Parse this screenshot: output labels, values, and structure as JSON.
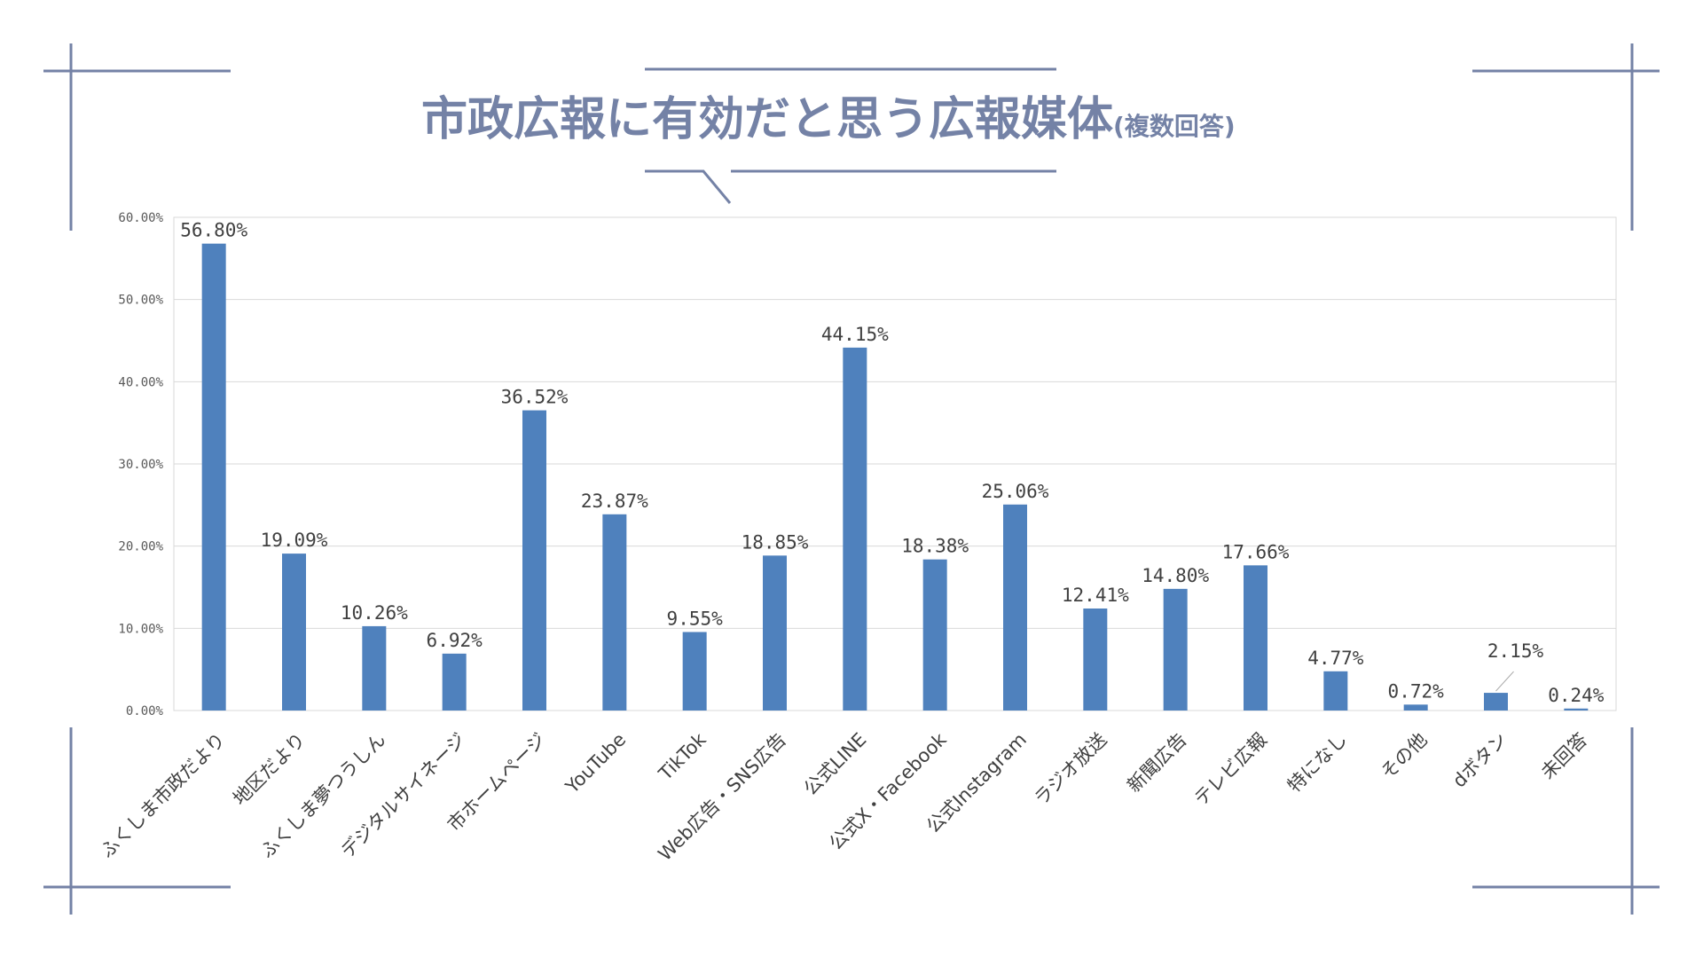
{
  "chart_data": {
    "type": "bar",
    "title": "市政広報に有効だと思う広報媒体",
    "subtitle": "(複数回答)",
    "categories": [
      "ふくしま市政だより",
      "地区だより",
      "ふくしま夢つうしん",
      "デジタルサイネージ",
      "市ホームページ",
      "YouTube",
      "TikTok",
      "Web広告・SNS広告",
      "公式LINE",
      "公式X・Facebook",
      "公式Instagram",
      "ラジオ放送",
      "新聞広告",
      "テレビ広報",
      "特になし",
      "その他",
      "dボタン",
      "未回答"
    ],
    "values": [
      56.8,
      19.09,
      10.26,
      6.92,
      36.52,
      23.87,
      9.55,
      18.85,
      44.15,
      18.38,
      25.06,
      12.41,
      14.8,
      17.66,
      4.77,
      0.72,
      2.15,
      0.24
    ],
    "data_labels": [
      "56.80%",
      "19.09%",
      "10.26%",
      "6.92%",
      "36.52%",
      "23.87%",
      "9.55%",
      "18.85%",
      "44.15%",
      "18.38%",
      "25.06%",
      "12.41%",
      "14.80%",
      "17.66%",
      "4.77%",
      "0.72%",
      "2.15%",
      "0.24%"
    ],
    "y_ticks": [
      "0.00%",
      "10.00%",
      "20.00%",
      "30.00%",
      "40.00%",
      "50.00%",
      "60.00%"
    ],
    "ylim": [
      0,
      60
    ],
    "grid": true,
    "xlabel": "",
    "ylabel": "",
    "colors": {
      "bar": "#4f81bd",
      "title": "#7482a6",
      "decor": "#7482a6"
    }
  }
}
